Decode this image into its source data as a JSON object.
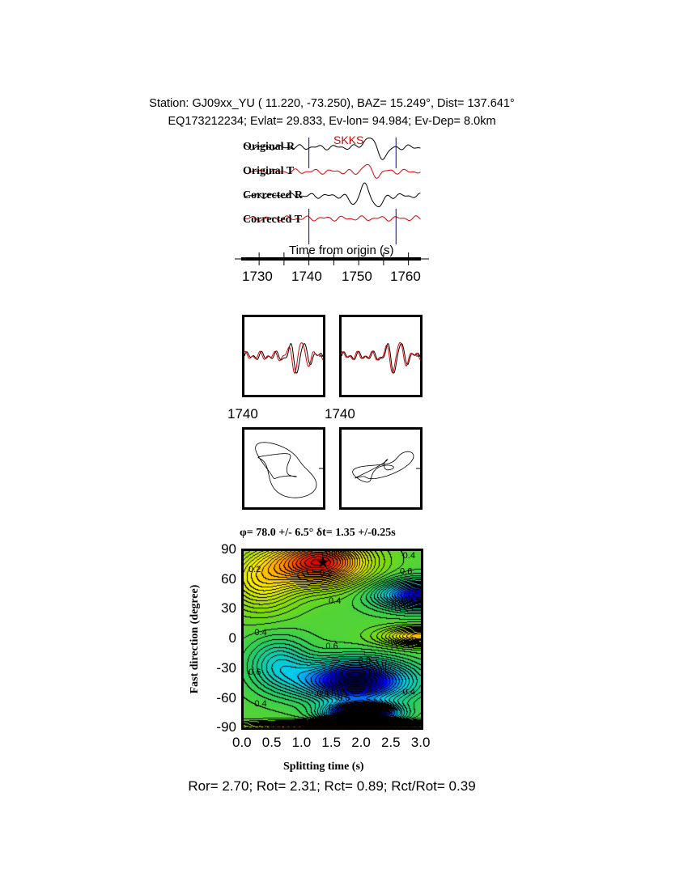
{
  "header": {
    "line1": "Station: GJ09xx_YU (  11.220,  -73.250), BAZ=   15.249°, Dist=  137.641°",
    "line2": "EQ173212234; Evlat=  29.833, Ev-lon=  94.984; Ev-Dep=  8.0km"
  },
  "traces": {
    "phase": "SKKS",
    "labels": [
      "Original R",
      "Original T",
      "Corrected R",
      "Corrected T"
    ],
    "xlabel": "Time from origin (s)",
    "xticks": [
      "1730",
      "1740",
      "1750",
      "1760"
    ],
    "window": [
      1740,
      1757.5
    ],
    "colors": {
      "radial": "#000000",
      "transverse": "#dd0000",
      "window": "#0000aa",
      "phase": "#dd0000"
    }
  },
  "waveform_panels": {
    "xtick_labels": [
      "1740",
      "1740"
    ]
  },
  "chart_data": {
    "type": "heatmap",
    "title": "φ= 78.0 +/- 6.5° δt= 1.35 +/-0.25s",
    "xlabel": "Splitting time (s)",
    "ylabel": "Fast direction (degree)",
    "xlim": [
      0,
      3
    ],
    "ylim": [
      -90,
      90
    ],
    "xticks": [
      "0.0",
      "0.5",
      "1.0",
      "1.5",
      "2.0",
      "2.5",
      "3.0"
    ],
    "yticks": [
      "90",
      "60",
      "30",
      "0",
      "-30",
      "-60",
      "-90"
    ],
    "best_fit": {
      "phi": 78.0,
      "dt": 1.35
    },
    "contour_labels": [
      "0.2",
      "0.2",
      "0.4",
      "0.6",
      "0.4",
      "0.4",
      "0.6",
      "0.8",
      "0.6",
      "0.8",
      "0.6",
      "0.4",
      "0.2",
      "0.8",
      "0.4"
    ],
    "colormap": [
      "#e00000",
      "#ff8800",
      "#ffee00",
      "#88dd00",
      "#22cc66",
      "#00ccee",
      "#0000ff",
      "#000000"
    ]
  },
  "footer": "Ror= 2.70; Rot= 2.31; Rct= 0.89; Rct/Rot= 0.39"
}
